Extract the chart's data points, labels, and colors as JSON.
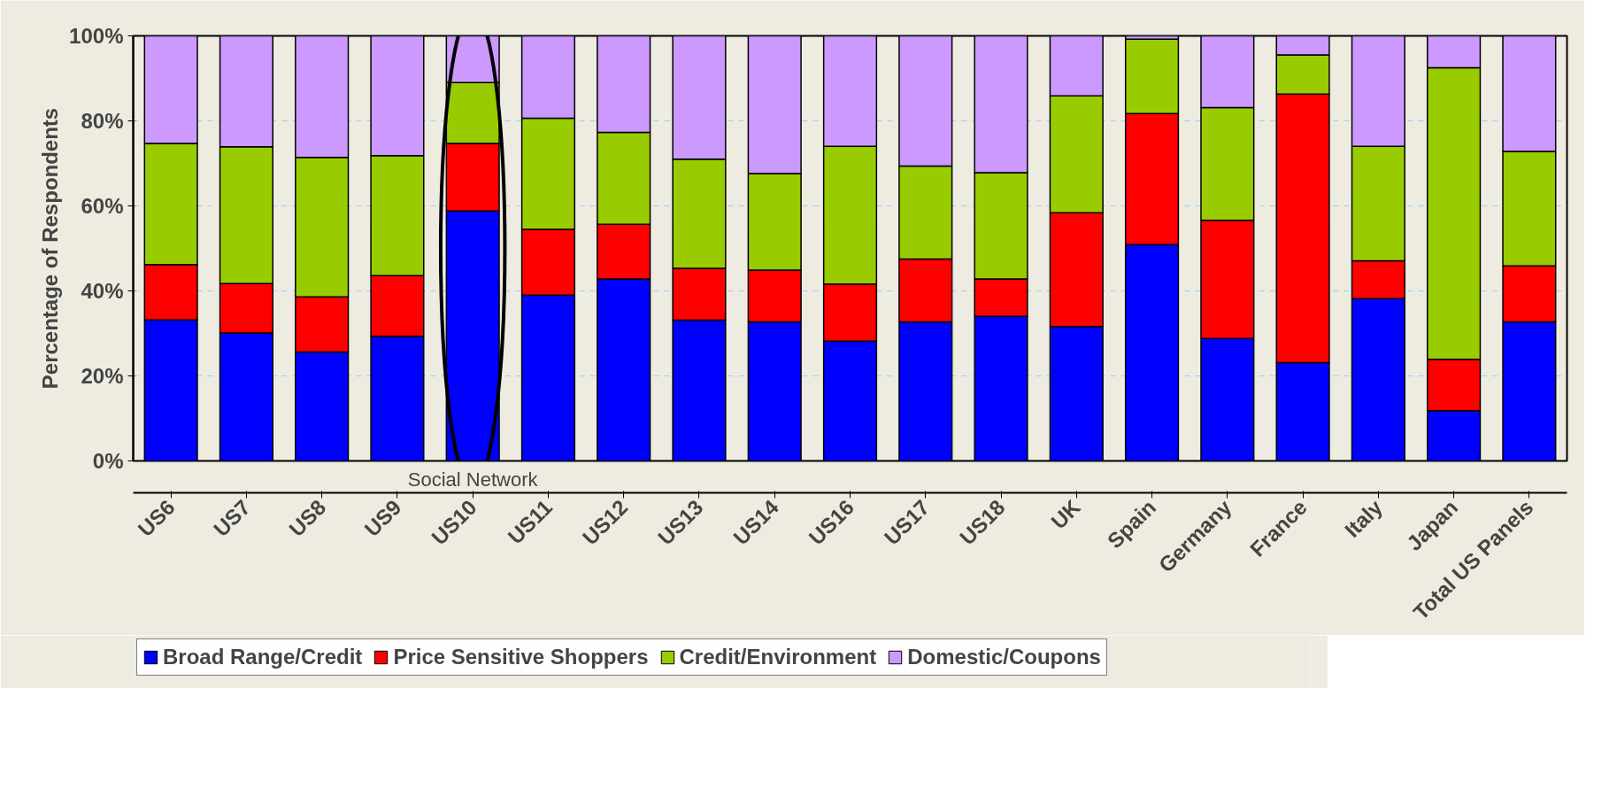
{
  "chart_data": {
    "type": "bar",
    "stacked": true,
    "ylabel": "Percentage of Respondents",
    "categories": [
      "US6",
      "US7",
      "US8",
      "US9",
      "US10",
      "US11",
      "US12",
      "US13",
      "US14",
      "US16",
      "US17",
      "US18",
      "UK",
      "Spain",
      "Germany",
      "France",
      "Italy",
      "Japan",
      "Total US Panels"
    ],
    "series": [
      {
        "name": "Broad Range/Credit",
        "color": "#0000ff",
        "values": [
          33.2,
          30.1,
          25.6,
          29.3,
          58.8,
          39.0,
          42.8,
          33.1,
          32.7,
          28.2,
          32.7,
          34.0,
          31.6,
          50.9,
          28.8,
          23.1,
          38.2,
          11.8,
          32.7
        ]
      },
      {
        "name": "Price Sensitive Shoppers",
        "color": "#ff0000",
        "values": [
          13.0,
          11.6,
          13.0,
          14.3,
          15.9,
          15.5,
          12.9,
          12.2,
          12.2,
          13.4,
          14.8,
          8.8,
          26.8,
          30.8,
          27.8,
          63.2,
          8.9,
          12.1,
          13.2
        ]
      },
      {
        "name": "Credit/Environment",
        "color": "#99cc00",
        "values": [
          28.5,
          32.2,
          32.8,
          28.2,
          14.3,
          26.1,
          21.6,
          25.7,
          22.7,
          32.4,
          21.9,
          25.0,
          27.5,
          17.5,
          26.5,
          9.2,
          26.9,
          68.6,
          26.9
        ]
      },
      {
        "name": "Domestic/Coupons",
        "color": "#cc99ff",
        "values": [
          25.3,
          26.1,
          28.6,
          28.2,
          11.0,
          19.4,
          22.7,
          29.0,
          32.4,
          26.0,
          30.6,
          32.2,
          14.1,
          0.8,
          16.9,
          4.5,
          26.0,
          7.5,
          27.2
        ]
      }
    ],
    "ylim": [
      0,
      100
    ],
    "yticks": [
      {
        "value": 0,
        "label": "0%"
      },
      {
        "value": 20,
        "label": "20%"
      },
      {
        "value": 40,
        "label": "40%"
      },
      {
        "value": 60,
        "label": "60%"
      },
      {
        "value": 80,
        "label": "80%"
      },
      {
        "value": 100,
        "label": "100%"
      }
    ],
    "grid": "y",
    "legend": "bottom",
    "annotations": [
      "Social Network"
    ]
  }
}
